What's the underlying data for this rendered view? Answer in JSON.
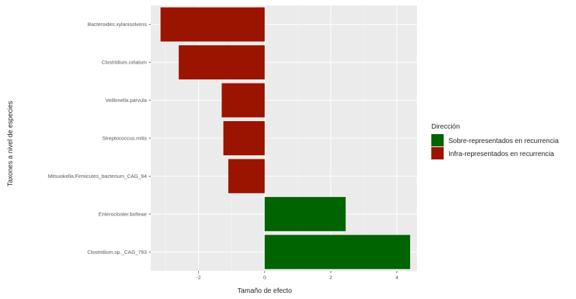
{
  "chart_data": {
    "type": "bar",
    "orientation": "horizontal",
    "xlabel": "Tamaño de efecto",
    "ylabel": "Taxones a nivel de especies",
    "xlim": [
      -3.5,
      4.4
    ],
    "xticks": [
      -2,
      0,
      2,
      4
    ],
    "grid": true,
    "legend_position": "right",
    "legend": {
      "title": "Dirección",
      "entries": [
        {
          "name": "Sobre-representados en recurrencia",
          "color": "#006400"
        },
        {
          "name": "Infra-representados en recurrencia",
          "color": "#9B1400"
        }
      ]
    },
    "categories": [
      "Bacteroides.xylanisolvens",
      "Clostridium.celatum",
      "Veillonella.parvula",
      "Streptococcus.mitis",
      "Mitsuokella.Firmicutes_bacterium_CAG_94",
      "Enterocloster.bolteae",
      "Clostridium.sp._CAG_793"
    ],
    "values": [
      -3.15,
      -2.6,
      -1.3,
      -1.25,
      -1.1,
      2.45,
      4.4
    ],
    "direction": [
      "Infra-representados en recurrencia",
      "Infra-representados en recurrencia",
      "Infra-representados en recurrencia",
      "Infra-representados en recurrencia",
      "Infra-representados en recurrencia",
      "Sobre-representados en recurrencia",
      "Sobre-representados en recurrencia"
    ]
  }
}
